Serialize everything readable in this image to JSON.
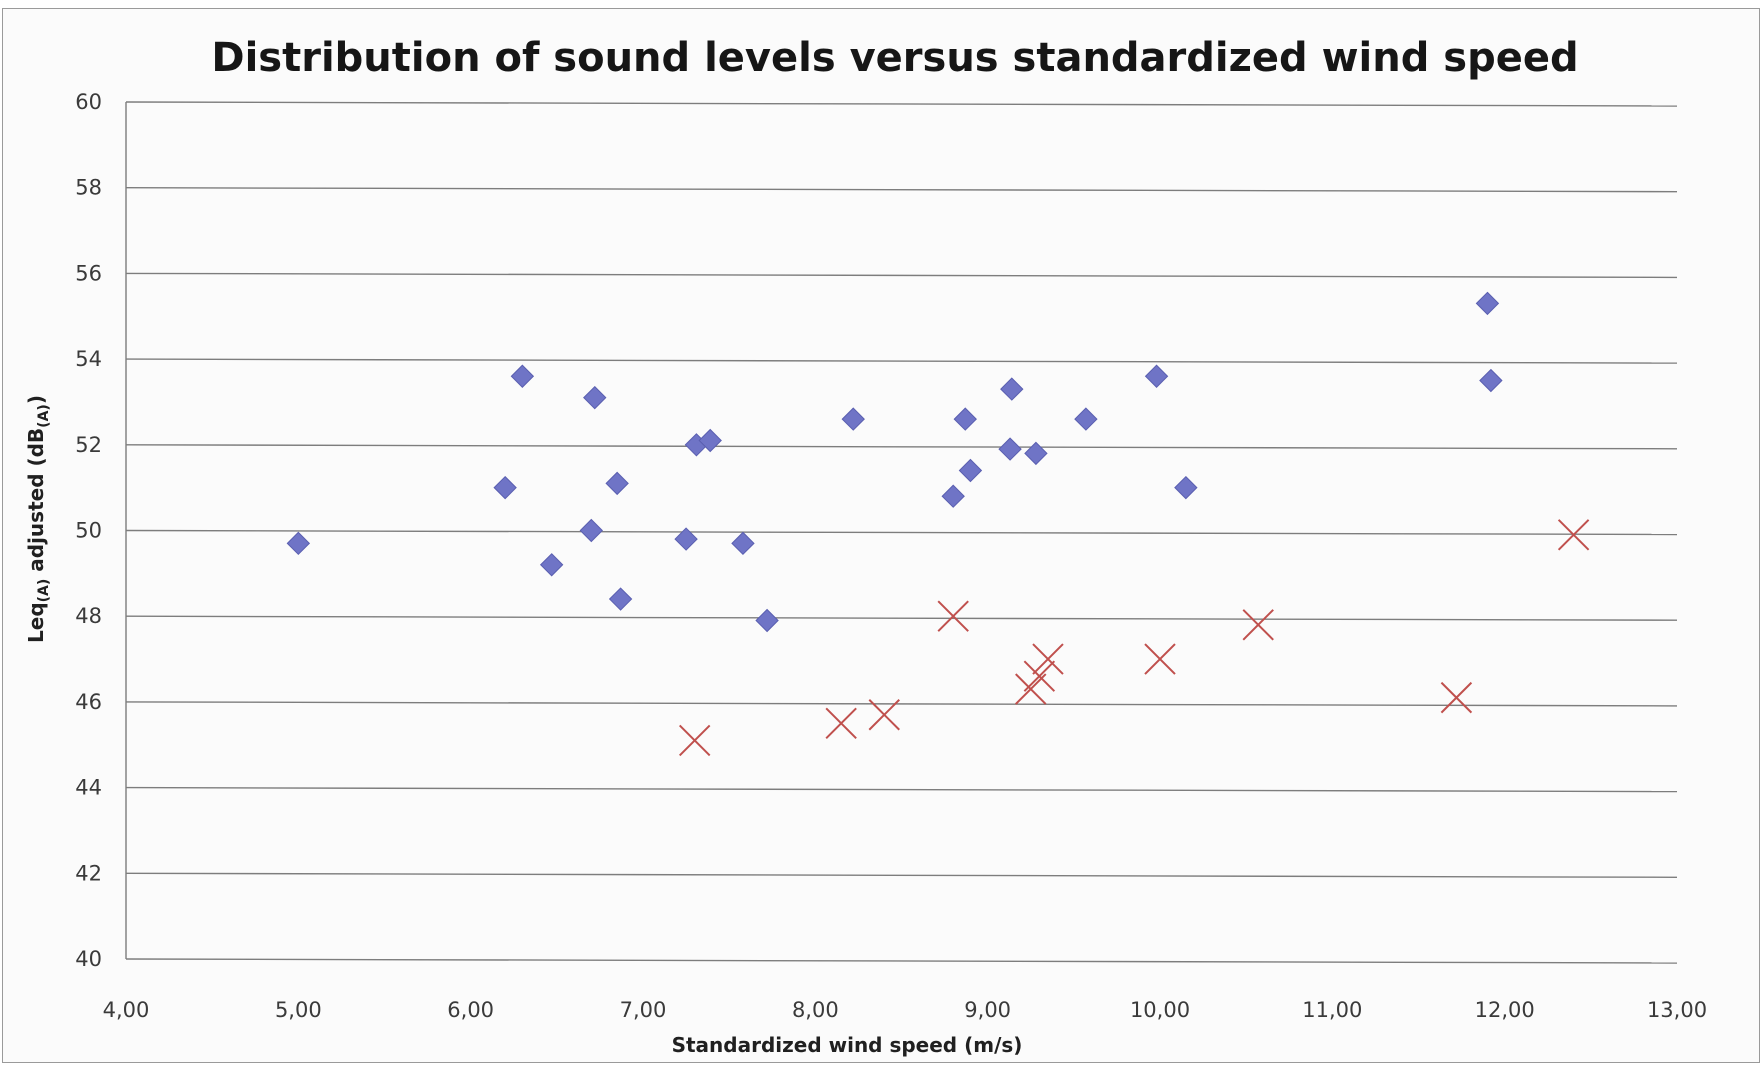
{
  "chart_data": {
    "type": "scatter",
    "title": "Distribution of sound levels versus standardized wind speed",
    "xlabel": "Standardized wind speed (m/s)",
    "ylabel": {
      "base": "Leq",
      "sub1": "(A)",
      "mid": " adjusted (dB",
      "sub2": "(A)",
      "end": ")"
    },
    "xlim": [
      4,
      13
    ],
    "ylim": [
      40,
      60
    ],
    "x_ticks": [
      4,
      5,
      6,
      7,
      8,
      9,
      10,
      11,
      12,
      13
    ],
    "x_tick_labels": [
      "4,00",
      "5,00",
      "6,00",
      "7,00",
      "8,00",
      "9,00",
      "10,00",
      "11,00",
      "12,00",
      "13,00"
    ],
    "y_ticks": [
      40,
      42,
      44,
      46,
      48,
      50,
      52,
      54,
      56,
      58,
      60
    ],
    "y_tick_labels": [
      "40",
      "42",
      "44",
      "46",
      "48",
      "50",
      "52",
      "54",
      "56",
      "58",
      "60"
    ],
    "grid": "horizontal",
    "legend": "none",
    "series": [
      {
        "marker": "diamond",
        "color": "#6f74c6",
        "points": [
          [
            5.0,
            49.7
          ],
          [
            6.2,
            51.0
          ],
          [
            6.3,
            53.6
          ],
          [
            6.47,
            49.2
          ],
          [
            6.7,
            50.0
          ],
          [
            6.72,
            53.1
          ],
          [
            6.85,
            51.1
          ],
          [
            6.87,
            48.4
          ],
          [
            7.25,
            49.8
          ],
          [
            7.31,
            52.0
          ],
          [
            7.39,
            52.1
          ],
          [
            7.58,
            49.7
          ],
          [
            7.72,
            47.9
          ],
          [
            8.22,
            52.6
          ],
          [
            8.8,
            50.8
          ],
          [
            8.87,
            52.6
          ],
          [
            8.9,
            51.4
          ],
          [
            9.13,
            51.9
          ],
          [
            9.14,
            53.3
          ],
          [
            9.28,
            51.8
          ],
          [
            9.57,
            52.6
          ],
          [
            9.98,
            53.6
          ],
          [
            10.15,
            51.0
          ],
          [
            11.9,
            55.3
          ],
          [
            11.92,
            53.5
          ]
        ]
      },
      {
        "marker": "cross",
        "color": "#c0504d",
        "points": [
          [
            7.3,
            45.1
          ],
          [
            8.15,
            45.5
          ],
          [
            8.4,
            45.7
          ],
          [
            8.8,
            48.0
          ],
          [
            9.25,
            46.3
          ],
          [
            9.3,
            46.6
          ],
          [
            9.35,
            47.0
          ],
          [
            10.0,
            47.0
          ],
          [
            10.57,
            47.8
          ],
          [
            11.72,
            46.1
          ],
          [
            12.4,
            49.9
          ]
        ]
      }
    ]
  }
}
